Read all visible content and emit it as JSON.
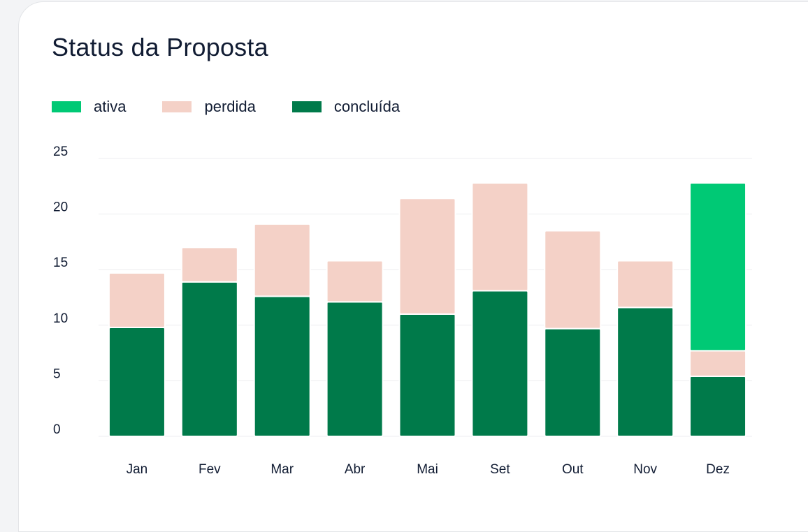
{
  "title": "Status da Proposta",
  "colors": {
    "ativa": "#00c975",
    "perdida": "#f4d1c7",
    "concluida": "#007a4a"
  },
  "chart_data": {
    "type": "bar",
    "stacked": true,
    "title": "Status da Proposta",
    "legend_position": "top-left",
    "grid": true,
    "categories": [
      "Jan",
      "Fev",
      "Mar",
      "Abr",
      "Mai",
      "Set",
      "Out",
      "Nov",
      "Dez"
    ],
    "series": [
      {
        "name": "concluída",
        "key": "concluida",
        "values": [
          9.8,
          13.9,
          12.6,
          12.1,
          11.0,
          13.1,
          9.7,
          11.6,
          5.4
        ]
      },
      {
        "name": "perdida",
        "key": "perdida",
        "values": [
          4.9,
          3.1,
          6.5,
          3.7,
          10.4,
          9.7,
          8.8,
          4.2,
          2.3
        ]
      },
      {
        "name": "ativa",
        "key": "ativa",
        "values": [
          0,
          0,
          0,
          0,
          0,
          0,
          0,
          0,
          15.1
        ]
      }
    ],
    "legend_order": [
      "ativa",
      "perdida",
      "concluida"
    ],
    "ylim": [
      0,
      25
    ],
    "yticks": [
      0,
      5,
      10,
      15,
      20,
      25
    ],
    "xlabel": "",
    "ylabel": ""
  }
}
